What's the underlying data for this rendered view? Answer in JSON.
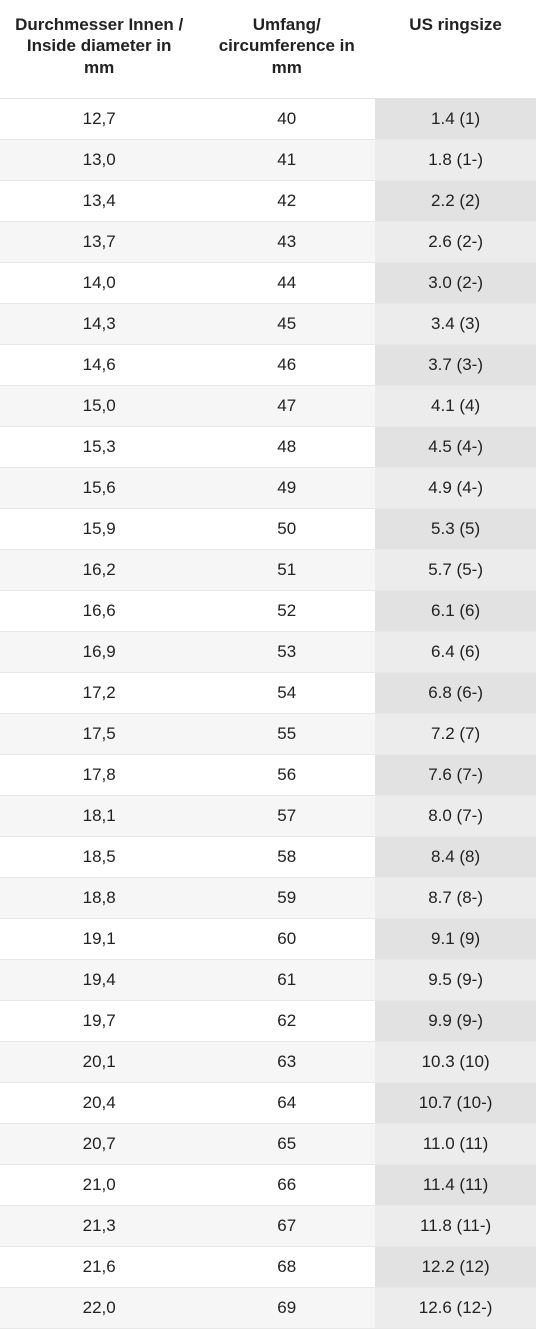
{
  "table": {
    "columns": [
      "Durchmesser Innen / Inside diameter in mm",
      "Umfang/ circumference in mm",
      "US ringsize"
    ],
    "rows": [
      [
        "12,7",
        "40",
        "1.4 (1)"
      ],
      [
        "13,0",
        "41",
        "1.8 (1-)"
      ],
      [
        "13,4",
        "42",
        "2.2 (2)"
      ],
      [
        "13,7",
        "43",
        "2.6 (2-)"
      ],
      [
        "14,0",
        "44",
        "3.0 (2-)"
      ],
      [
        "14,3",
        "45",
        "3.4 (3)"
      ],
      [
        "14,6",
        "46",
        "3.7 (3-)"
      ],
      [
        "15,0",
        "47",
        "4.1 (4)"
      ],
      [
        "15,3",
        "48",
        "4.5 (4-)"
      ],
      [
        "15,6",
        "49",
        "4.9 (4-)"
      ],
      [
        "15,9",
        "50",
        "5.3 (5)"
      ],
      [
        "16,2",
        "51",
        "5.7 (5-)"
      ],
      [
        "16,6",
        "52",
        "6.1 (6)"
      ],
      [
        "16,9",
        "53",
        "6.4 (6)"
      ],
      [
        "17,2",
        "54",
        "6.8 (6-)"
      ],
      [
        "17,5",
        "55",
        "7.2 (7)"
      ],
      [
        "17,8",
        "56",
        "7.6 (7-)"
      ],
      [
        "18,1",
        "57",
        "8.0 (7-)"
      ],
      [
        "18,5",
        "58",
        "8.4 (8)"
      ],
      [
        "18,8",
        "59",
        "8.7 (8-)"
      ],
      [
        "19,1",
        "60",
        "9.1 (9)"
      ],
      [
        "19,4",
        "61",
        "9.5 (9-)"
      ],
      [
        "19,7",
        "62",
        "9.9 (9-)"
      ],
      [
        "20,1",
        "63",
        "10.3 (10)"
      ],
      [
        "20,4",
        "64",
        "10.7 (10-)"
      ],
      [
        "20,7",
        "65",
        "11.0 (11)"
      ],
      [
        "21,0",
        "66",
        "11.4 (11)"
      ],
      [
        "21,3",
        "67",
        "11.8 (11-)"
      ],
      [
        "21,6",
        "68",
        "12.2 (12)"
      ],
      [
        "22,0",
        "69",
        "12.6 (12-)"
      ]
    ],
    "column_widths_pct": [
      37,
      33,
      30
    ],
    "header_fontsize_pt": 13,
    "cell_fontsize_pt": 13,
    "colors": {
      "text": "#222222",
      "row_even_bg": "#f6f6f6",
      "row_odd_bg": "#ffffff",
      "us_col_even_bg": "#ececec",
      "us_col_odd_bg": "#e2e2e2",
      "border": "#e8e8e8",
      "background": "#ffffff"
    }
  }
}
